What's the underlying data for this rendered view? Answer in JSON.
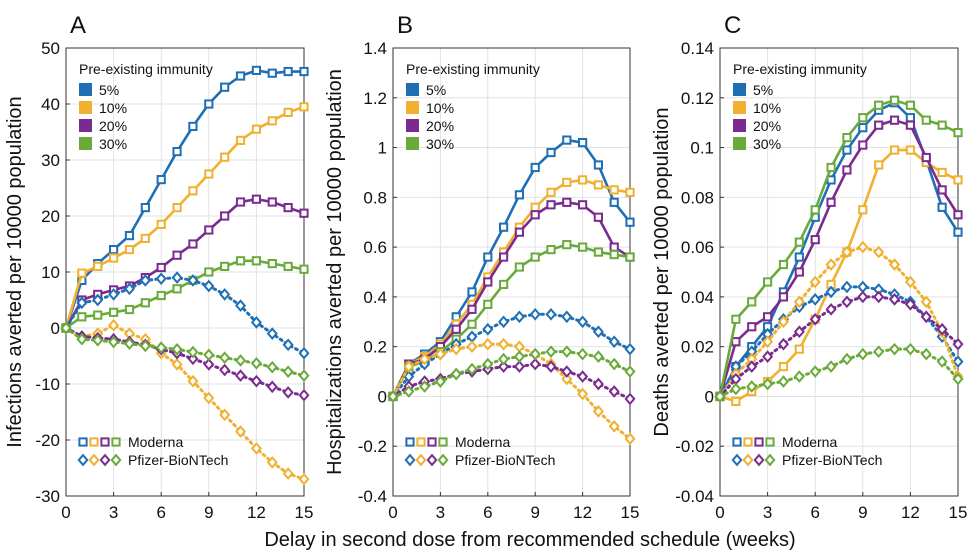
{
  "figure": {
    "xlabel": "Delay in second dose from recommended schedule (weeks)",
    "legend_title": "Pre-existing immunity",
    "immunity_levels": [
      "5%",
      "10%",
      "20%",
      "30%"
    ],
    "vaccines": [
      "Moderna",
      "Pfizer-BioNTech"
    ],
    "colors": {
      "5%": "#1f6fb5",
      "10%": "#f0b030",
      "20%": "#7a2b8f",
      "30%": "#6aaa3a"
    }
  },
  "chart_data": [
    {
      "type": "line",
      "panel_label": "A",
      "ylabel": "Infections averted per 10000 population",
      "x": [
        0,
        1,
        2,
        3,
        4,
        5,
        6,
        7,
        8,
        9,
        10,
        11,
        12,
        13,
        14,
        15
      ],
      "xticks": [
        0,
        3,
        6,
        9,
        12,
        15
      ],
      "xlim": [
        0,
        15
      ],
      "ylim": [
        -30,
        50
      ],
      "yticks": [
        -30,
        -20,
        -10,
        0,
        10,
        20,
        30,
        40,
        50
      ],
      "grid": true,
      "legend_position": "top-left",
      "series": [
        {
          "name": "Moderna",
          "immunity": "5%",
          "values": [
            0,
            8.5,
            11.5,
            14,
            16.5,
            21.5,
            26.5,
            31.5,
            36,
            40,
            43,
            45,
            46,
            45.5,
            45.8,
            45.8
          ]
        },
        {
          "name": "Moderna",
          "immunity": "10%",
          "values": [
            0,
            9.8,
            11,
            12.5,
            14,
            16,
            18.5,
            21.5,
            24.5,
            27.5,
            30.5,
            33.5,
            35.5,
            37,
            38.5,
            39.5
          ]
        },
        {
          "name": "Moderna",
          "immunity": "20%",
          "values": [
            0,
            5,
            6,
            6.8,
            7.5,
            9,
            10.8,
            13,
            15,
            17.5,
            20,
            22.5,
            23,
            22.5,
            21.5,
            20.5
          ]
        },
        {
          "name": "Moderna",
          "immunity": "30%",
          "values": [
            0,
            2,
            2.3,
            2.8,
            3.3,
            4.5,
            5.8,
            7,
            8.5,
            10,
            11,
            12,
            12,
            11.5,
            11,
            10.5
          ]
        },
        {
          "name": "Pfizer-BioNTech",
          "immunity": "5%",
          "values": [
            0,
            4.5,
            5,
            6,
            7,
            8.5,
            8.8,
            9,
            8.5,
            7.5,
            6,
            4,
            1,
            -1,
            -3,
            -4.5
          ]
        },
        {
          "name": "Pfizer-BioNTech",
          "immunity": "10%",
          "values": [
            0,
            -1.5,
            -1,
            0.5,
            -1,
            -2,
            -4.5,
            -6.5,
            -9.5,
            -12.5,
            -15.5,
            -18.5,
            -21.5,
            -24,
            -26,
            -27
          ]
        },
        {
          "name": "Pfizer-BioNTech",
          "immunity": "20%",
          "values": [
            0,
            -1.5,
            -1.8,
            -2,
            -2.5,
            -3,
            -3.8,
            -4.5,
            -5.5,
            -6.5,
            -7.5,
            -8.5,
            -9.5,
            -10.5,
            -11.5,
            -12
          ]
        },
        {
          "name": "Pfizer-BioNTech",
          "immunity": "30%",
          "values": [
            0,
            -2,
            -2.2,
            -2.5,
            -2.8,
            -3.2,
            -3.5,
            -3.8,
            -4.3,
            -4.8,
            -5.3,
            -5.8,
            -6.3,
            -7,
            -7.8,
            -8.5
          ]
        }
      ]
    },
    {
      "type": "line",
      "panel_label": "B",
      "ylabel": "Hospitalizations averted per 10000 population",
      "x": [
        0,
        1,
        2,
        3,
        4,
        5,
        6,
        7,
        8,
        9,
        10,
        11,
        12,
        13,
        14,
        15
      ],
      "xticks": [
        0,
        3,
        6,
        9,
        12,
        15
      ],
      "xlim": [
        0,
        15
      ],
      "ylim": [
        -0.4,
        1.4
      ],
      "yticks": [
        -0.4,
        -0.2,
        0,
        0.2,
        0.4,
        0.6,
        0.8,
        1,
        1.2,
        1.4
      ],
      "grid": true,
      "legend_position": "top-left",
      "series": [
        {
          "name": "Moderna",
          "immunity": "5%",
          "values": [
            0,
            0.13,
            0.17,
            0.22,
            0.32,
            0.42,
            0.56,
            0.68,
            0.81,
            0.92,
            0.98,
            1.03,
            1.02,
            0.93,
            0.78,
            0.7
          ]
        },
        {
          "name": "Moderna",
          "immunity": "10%",
          "values": [
            0,
            0.13,
            0.16,
            0.21,
            0.29,
            0.37,
            0.48,
            0.58,
            0.68,
            0.76,
            0.82,
            0.86,
            0.87,
            0.85,
            0.83,
            0.82
          ]
        },
        {
          "name": "Moderna",
          "immunity": "20%",
          "values": [
            0,
            0.13,
            0.15,
            0.2,
            0.27,
            0.35,
            0.46,
            0.56,
            0.66,
            0.73,
            0.77,
            0.78,
            0.77,
            0.72,
            0.6,
            0.56
          ]
        },
        {
          "name": "Moderna",
          "immunity": "30%",
          "values": [
            0,
            0.12,
            0.14,
            0.18,
            0.23,
            0.29,
            0.37,
            0.45,
            0.52,
            0.56,
            0.59,
            0.61,
            0.6,
            0.58,
            0.57,
            0.56
          ]
        },
        {
          "name": "Pfizer-BioNTech",
          "immunity": "5%",
          "values": [
            0,
            0.08,
            0.13,
            0.17,
            0.21,
            0.24,
            0.27,
            0.3,
            0.32,
            0.33,
            0.33,
            0.32,
            0.3,
            0.26,
            0.22,
            0.19
          ]
        },
        {
          "name": "Pfizer-BioNTech",
          "immunity": "10%",
          "values": [
            0,
            0.12,
            0.15,
            0.17,
            0.19,
            0.2,
            0.21,
            0.21,
            0.2,
            0.17,
            0.13,
            0.07,
            0.01,
            -0.06,
            -0.12,
            -0.17
          ]
        },
        {
          "name": "Pfizer-BioNTech",
          "immunity": "20%",
          "values": [
            0,
            0.04,
            0.06,
            0.07,
            0.09,
            0.1,
            0.11,
            0.12,
            0.12,
            0.13,
            0.12,
            0.1,
            0.08,
            0.05,
            0.02,
            -0.01
          ]
        },
        {
          "name": "Pfizer-BioNTech",
          "immunity": "30%",
          "values": [
            0,
            0.02,
            0.04,
            0.06,
            0.09,
            0.11,
            0.13,
            0.15,
            0.16,
            0.17,
            0.18,
            0.18,
            0.17,
            0.16,
            0.13,
            0.1
          ]
        }
      ]
    },
    {
      "type": "line",
      "panel_label": "C",
      "ylabel": "Deaths averted per 10000 population",
      "x": [
        0,
        1,
        2,
        3,
        4,
        5,
        6,
        7,
        8,
        9,
        10,
        11,
        12,
        13,
        14,
        15
      ],
      "xticks": [
        0,
        3,
        6,
        9,
        12,
        15
      ],
      "xlim": [
        0,
        15
      ],
      "ylim": [
        -0.04,
        0.14
      ],
      "yticks": [
        -0.04,
        -0.02,
        0,
        0.02,
        0.04,
        0.06,
        0.08,
        0.1,
        0.12,
        0.14
      ],
      "grid": true,
      "legend_position": "top-left",
      "series": [
        {
          "name": "Moderna",
          "immunity": "5%",
          "values": [
            0,
            0.012,
            0.02,
            0.028,
            0.042,
            0.056,
            0.072,
            0.087,
            0.099,
            0.108,
            0.115,
            0.118,
            0.112,
            0.095,
            0.076,
            0.066
          ]
        },
        {
          "name": "Moderna",
          "immunity": "10%",
          "values": [
            0,
            -0.002,
            0.002,
            0.006,
            0.012,
            0.019,
            0.031,
            0.045,
            0.058,
            0.075,
            0.093,
            0.099,
            0.099,
            0.094,
            0.09,
            0.087
          ]
        },
        {
          "name": "Moderna",
          "immunity": "20%",
          "values": [
            0,
            0.022,
            0.028,
            0.032,
            0.04,
            0.05,
            0.063,
            0.078,
            0.091,
            0.101,
            0.109,
            0.111,
            0.109,
            0.096,
            0.083,
            0.073
          ]
        },
        {
          "name": "Moderna",
          "immunity": "30%",
          "values": [
            0,
            0.031,
            0.038,
            0.046,
            0.053,
            0.062,
            0.075,
            0.092,
            0.104,
            0.112,
            0.117,
            0.119,
            0.117,
            0.111,
            0.109,
            0.106
          ]
        },
        {
          "name": "Pfizer-BioNTech",
          "immunity": "5%",
          "values": [
            0,
            0.012,
            0.018,
            0.025,
            0.031,
            0.036,
            0.039,
            0.042,
            0.044,
            0.044,
            0.043,
            0.041,
            0.038,
            0.032,
            0.024,
            0.014
          ]
        },
        {
          "name": "Pfizer-BioNTech",
          "immunity": "10%",
          "values": [
            0,
            0.009,
            0.015,
            0.022,
            0.03,
            0.038,
            0.046,
            0.053,
            0.058,
            0.06,
            0.058,
            0.053,
            0.046,
            0.038,
            0.026,
            0.008
          ]
        },
        {
          "name": "Pfizer-BioNTech",
          "immunity": "20%",
          "values": [
            0,
            0.007,
            0.012,
            0.016,
            0.021,
            0.026,
            0.031,
            0.035,
            0.038,
            0.04,
            0.04,
            0.039,
            0.037,
            0.032,
            0.027,
            0.021
          ]
        },
        {
          "name": "Pfizer-BioNTech",
          "immunity": "30%",
          "values": [
            0,
            0.003,
            0.004,
            0.005,
            0.006,
            0.008,
            0.01,
            0.012,
            0.015,
            0.017,
            0.018,
            0.019,
            0.019,
            0.017,
            0.014,
            0.007
          ]
        }
      ]
    }
  ]
}
